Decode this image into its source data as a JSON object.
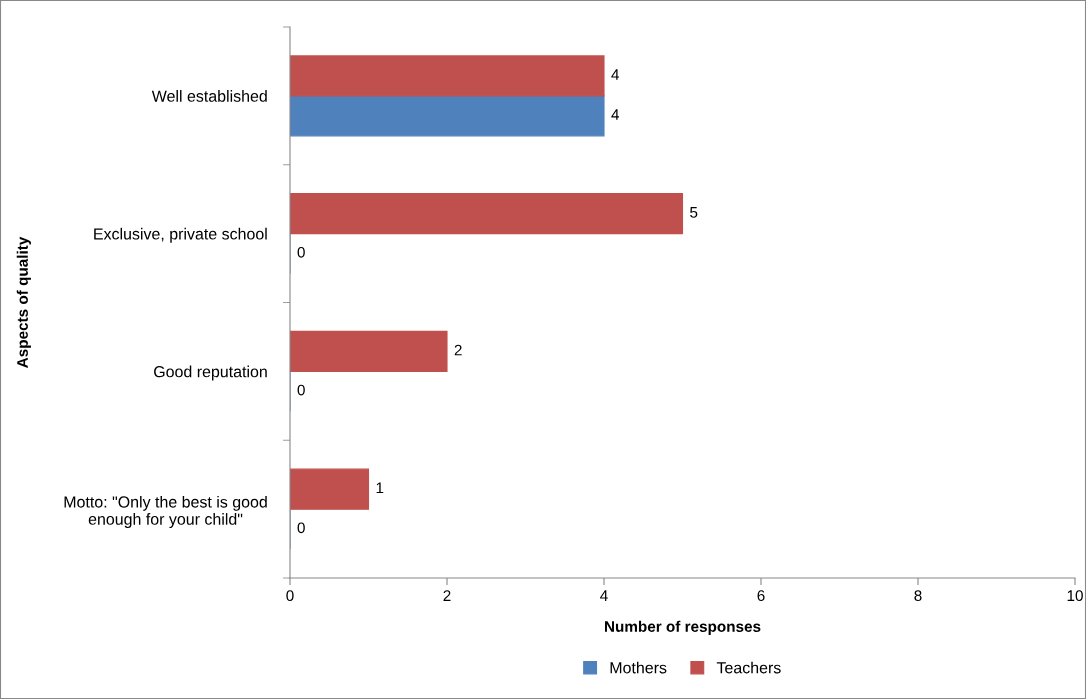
{
  "chart_data": {
    "type": "bar",
    "orientation": "horizontal",
    "xlabel": "Number of responses",
    "ylabel": "Aspects of quality",
    "categories": [
      "Well established",
      "Exclusive, private school",
      "Good reputation",
      "Motto: \"Only the best is good enough for your child\""
    ],
    "series": [
      {
        "name": "Mothers",
        "color": "#4f81bd",
        "values": [
          4,
          0,
          0,
          0
        ]
      },
      {
        "name": "Teachers",
        "color": "#c0504d",
        "values": [
          4,
          5,
          2,
          1
        ]
      }
    ],
    "xlim": [
      0,
      10
    ],
    "xticks": [
      0,
      2,
      4,
      6,
      8,
      10
    ],
    "grid": false,
    "legend": "bottom",
    "data_labels": true
  }
}
